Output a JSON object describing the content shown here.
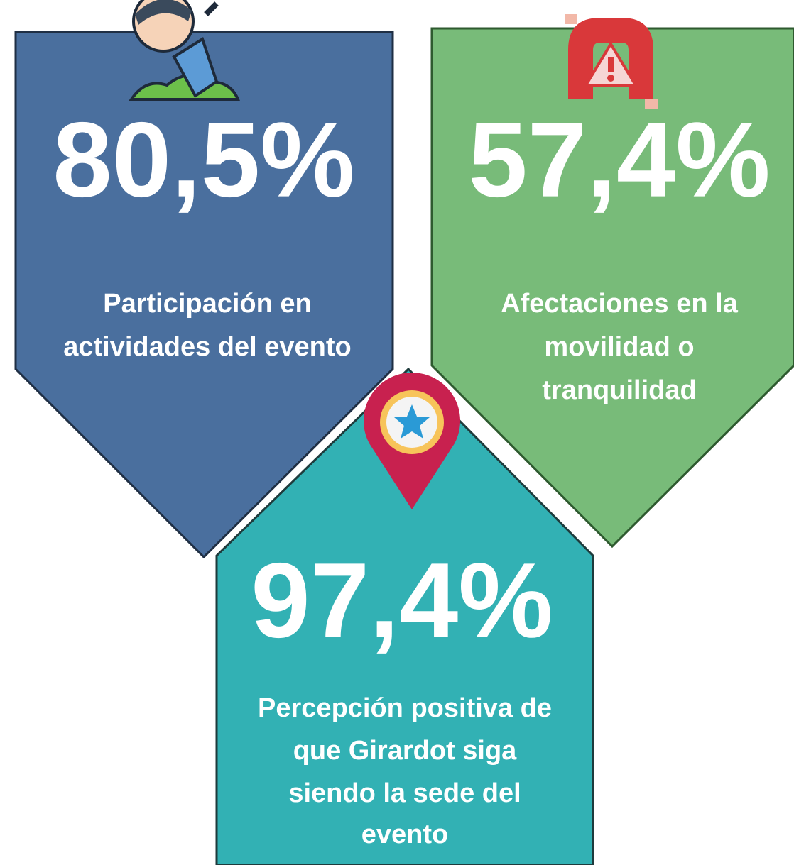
{
  "cards": [
    {
      "value": "80,5%",
      "label_lines": [
        "Participación en",
        "actividades del evento"
      ]
    },
    {
      "value": "57,4%",
      "label_lines": [
        "Afectaciones en la",
        "movilidad o",
        "tranquilidad"
      ]
    },
    {
      "value": "97,4%",
      "label_lines": [
        "Percepción positiva de",
        "que Girardot siga",
        "siendo la sede del",
        "evento"
      ]
    }
  ]
}
